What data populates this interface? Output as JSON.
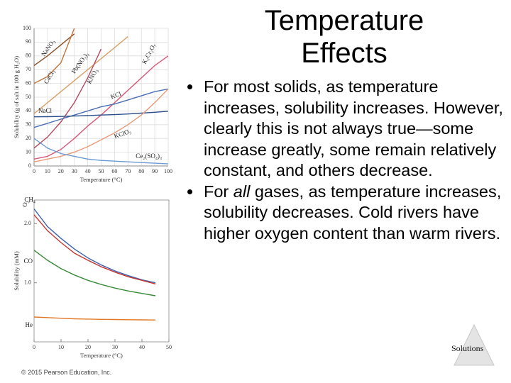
{
  "slide": {
    "title": [
      "Temperature",
      "Effects"
    ],
    "bullets": [
      "For most solids, as temperature increases, solubility increases. However, clearly this is not always true—some increase greatly, some remain relatively constant, and others decrease.",
      [
        "For ",
        "all",
        " gases, as temperature increases, solubility decreases. Cold rivers have higher oxygen content than warm rivers."
      ]
    ],
    "footer": "© 2015 Pearson Education, Inc.",
    "badge": "Solutions"
  },
  "chart_data": [
    {
      "type": "line",
      "xlabel": "Temperature (°C)",
      "ylabel": "Solubility (g of salt in 100 g H₂O)",
      "x": [
        0,
        10,
        20,
        30,
        40,
        50,
        60,
        70,
        80,
        90,
        100
      ],
      "xlim": [
        0,
        100
      ],
      "xticks": [
        0,
        10,
        20,
        30,
        40,
        50,
        60,
        70,
        80,
        90,
        100
      ],
      "ylim": [
        0,
        100
      ],
      "yticks": [
        0,
        10,
        20,
        30,
        40,
        50,
        60,
        70,
        80,
        90,
        100
      ],
      "grid": true,
      "series": [
        {
          "name": "NaNO₃",
          "color": "#8b4f2a",
          "values": [
            73,
            80,
            88,
            96,
            null,
            null,
            null,
            null,
            null,
            null,
            null
          ]
        },
        {
          "name": "CaCl₂",
          "color": "#c1743a",
          "values": [
            60,
            65,
            75,
            100,
            null,
            null,
            null,
            null,
            null,
            null,
            null
          ]
        },
        {
          "name": "Pb(NO₃)₂",
          "color": "#d9a066",
          "values": [
            38,
            46,
            54,
            62,
            70,
            78,
            86,
            94,
            null,
            null,
            null
          ]
        },
        {
          "name": "KNO₃",
          "color": "#b5485e",
          "values": [
            13,
            21,
            32,
            46,
            64,
            85,
            null,
            null,
            null,
            null,
            null
          ]
        },
        {
          "name": "K₂Cr₂O₇",
          "color": "#d55a7a",
          "values": [
            5,
            7,
            12,
            20,
            29,
            37,
            46,
            55,
            64,
            73,
            80
          ]
        },
        {
          "name": "KCl",
          "color": "#4a6fb5",
          "values": [
            28,
            31,
            34,
            37,
            40,
            43,
            45,
            48,
            51,
            54,
            56
          ]
        },
        {
          "name": "NaCl",
          "color": "#2c4f8c",
          "values": [
            35.7,
            35.8,
            36,
            36.3,
            36.6,
            37,
            37.3,
            37.8,
            38.4,
            39,
            39.8
          ]
        },
        {
          "name": "KClO₃",
          "color": "#e89a7a",
          "values": [
            3,
            5,
            7,
            10,
            14,
            19,
            24,
            30,
            37,
            46,
            56
          ]
        },
        {
          "name": "Ce₂(SO₄)₃",
          "color": "#6a9ad0",
          "values": [
            20,
            13,
            9,
            7,
            5,
            4,
            3.5,
            3,
            2.5,
            2,
            1.5
          ]
        }
      ]
    },
    {
      "type": "line",
      "xlabel": "Temperature (°C)",
      "ylabel": "Solubility (mM)",
      "x": [
        0,
        5,
        10,
        15,
        20,
        25,
        30,
        35,
        40,
        45
      ],
      "xlim": [
        0,
        50
      ],
      "xticks": [
        0,
        10,
        20,
        30,
        40,
        50
      ],
      "ylim": [
        0,
        2.4
      ],
      "yticks": [
        {
          "value": 1,
          "label": "1.0"
        },
        {
          "value": 2,
          "label": "2.0"
        }
      ],
      "grid": false,
      "series": [
        {
          "name": "CH₄",
          "color": "#3a63b0",
          "values": [
            2.25,
            1.95,
            1.75,
            1.57,
            1.42,
            1.3,
            1.2,
            1.12,
            1.05,
            1.0
          ]
        },
        {
          "name": "O₂",
          "color": "#c8352e",
          "values": [
            2.15,
            1.88,
            1.68,
            1.5,
            1.38,
            1.27,
            1.18,
            1.1,
            1.04,
            0.98
          ]
        },
        {
          "name": "CO",
          "color": "#3a8a3a",
          "values": [
            1.55,
            1.38,
            1.24,
            1.13,
            1.04,
            0.97,
            0.91,
            0.86,
            0.82,
            0.78
          ]
        },
        {
          "name": "He",
          "color": "#e07a2a",
          "values": [
            0.42,
            0.41,
            0.4,
            0.39,
            0.385,
            0.38,
            0.378,
            0.375,
            0.372,
            0.37
          ]
        }
      ]
    }
  ]
}
